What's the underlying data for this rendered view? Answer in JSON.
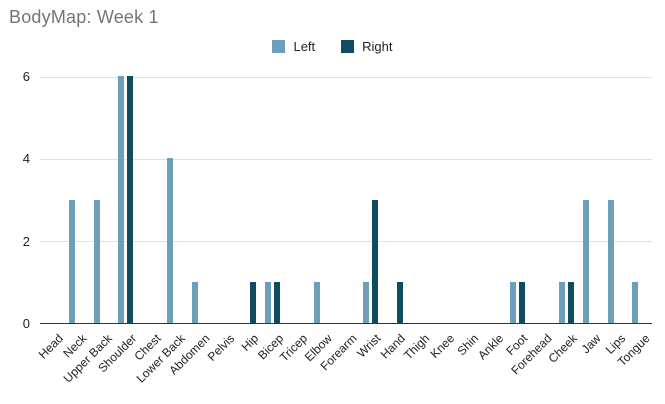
{
  "chart": {
    "title": "BodyMap: Week 1"
  },
  "chart_data": {
    "type": "bar",
    "title": "BodyMap: Week 1",
    "xlabel": "",
    "ylabel": "",
    "categories": [
      "Head",
      "Neck",
      "Upper Back",
      "Shoulder",
      "Chest",
      "Lower Back",
      "Abdomen",
      "Pelvis",
      "Hip",
      "Bicep",
      "Tricep",
      "Elbow",
      "Forearm",
      "Wrist",
      "Hand",
      "Thigh",
      "Knee",
      "Shin",
      "Ankle",
      "Foot",
      "Forehead",
      "Cheek",
      "Jaw",
      "Lips",
      "Tongue"
    ],
    "series": [
      {
        "name": "Left",
        "color": "#6d9eba",
        "values": [
          0,
          3,
          3,
          6,
          0,
          4,
          1,
          0,
          0,
          1,
          0,
          1,
          0,
          1,
          0,
          0,
          0,
          0,
          0,
          1,
          0,
          1,
          3,
          3,
          1
        ]
      },
      {
        "name": "Right",
        "color": "#0f4c61",
        "values": [
          0,
          0,
          0,
          6,
          0,
          0,
          0,
          0,
          1,
          1,
          0,
          0,
          0,
          3,
          1,
          0,
          0,
          0,
          0,
          1,
          0,
          1,
          0,
          0,
          0
        ]
      }
    ],
    "ylim": [
      0,
      6
    ],
    "yticks": [
      0,
      2,
      4,
      6
    ],
    "grid": true,
    "legend_position": "top"
  },
  "colors": {
    "title_text": "#757575",
    "axis_text": "#222222",
    "gridline": "#e0e0e0",
    "baseline": "#333333",
    "background": "#ffffff"
  }
}
